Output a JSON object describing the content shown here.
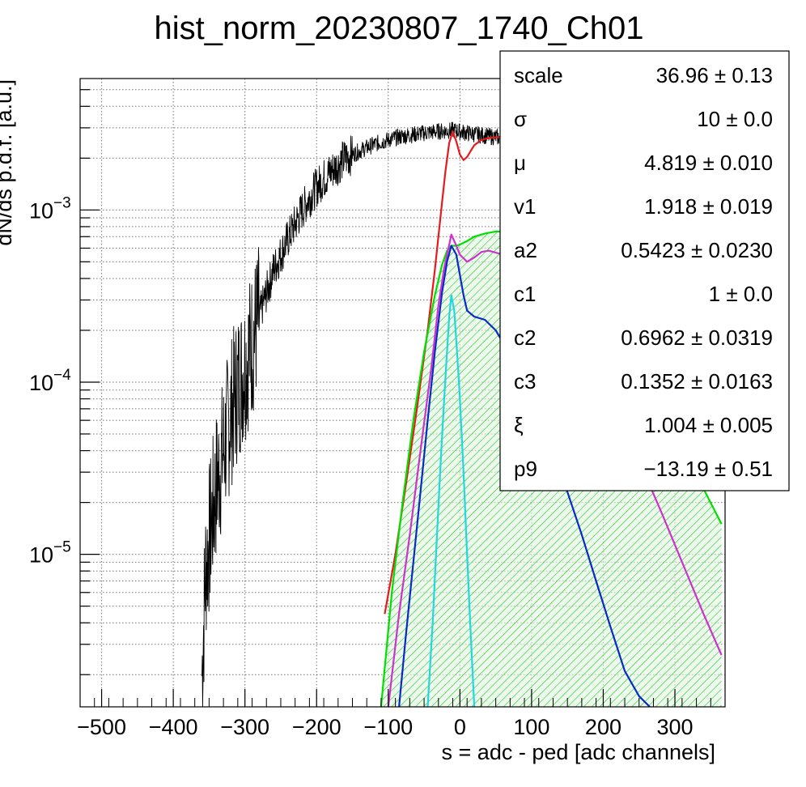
{
  "chart_data": {
    "type": "line",
    "title": "hist_norm_20230807_1740_Ch01",
    "xlabel": "s = adc - ped [adc channels]",
    "ylabel": "dN/ds p.d.f. [a.u.]",
    "xlim": [
      -530,
      370
    ],
    "ylim": [
      1.3e-06,
      0.0058
    ],
    "ylog": true,
    "grid": true,
    "x_ticks": [
      {
        "v": -500,
        "label": "−500"
      },
      {
        "v": -400,
        "label": "−400"
      },
      {
        "v": -300,
        "label": "−300"
      },
      {
        "v": -200,
        "label": "−200"
      },
      {
        "v": -100,
        "label": "−100"
      },
      {
        "v": 0,
        "label": "0"
      },
      {
        "v": 100,
        "label": "100"
      },
      {
        "v": 200,
        "label": "200"
      },
      {
        "v": 300,
        "label": "300"
      }
    ],
    "y_ticks": [
      {
        "v": 0.001,
        "base": "10",
        "exp": "−3"
      },
      {
        "v": 0.0001,
        "base": "10",
        "exp": "−4"
      },
      {
        "v": 1e-05,
        "base": "10",
        "exp": "−5"
      }
    ],
    "series": [
      {
        "key": "data_histogram",
        "color": "#000000",
        "x": [
          -360,
          -355,
          -350,
          -340,
          -330,
          -320,
          -310,
          -300,
          -290,
          -280,
          -270,
          -260,
          -250,
          -240,
          -230,
          -220,
          -210,
          -200,
          -190,
          -180,
          -170,
          -160,
          -150,
          -140,
          -130,
          -120,
          -110,
          -100,
          -90,
          -80,
          -70,
          -60,
          -50,
          -40,
          -30,
          -20,
          -15,
          -10,
          -5,
          0,
          10,
          20,
          30,
          40,
          50,
          60
        ],
        "y": [
          2e-06,
          8e-06,
          1.2e-05,
          2.5e-05,
          4e-05,
          6.5e-05,
          9.5e-05,
          0.000125,
          0.00017,
          0.00024,
          0.00033,
          0.00045,
          0.00055,
          0.00068,
          0.00083,
          0.001,
          0.00118,
          0.00135,
          0.00152,
          0.00168,
          0.00183,
          0.002,
          0.0021,
          0.0022,
          0.0023,
          0.0024,
          0.00248,
          0.00255,
          0.00262,
          0.00268,
          0.00272,
          0.00276,
          0.0028,
          0.00283,
          0.00286,
          0.00288,
          0.00289,
          0.0029,
          0.00288,
          0.00285,
          0.0028,
          0.00276,
          0.00272,
          0.00268,
          0.00265,
          0.00262
        ]
      },
      {
        "key": "total_fit",
        "color": "#e8191b",
        "x": [
          -105,
          -90,
          -75,
          -60,
          -45,
          -35,
          -25,
          -20,
          -15,
          -10,
          -5,
          0,
          5,
          10,
          15,
          20,
          30,
          40,
          55,
          70,
          90,
          110,
          130,
          150,
          170,
          200,
          230,
          260,
          290,
          320,
          345,
          365
        ],
        "y": [
          4.5e-06,
          1e-05,
          2.6e-05,
          7e-05,
          0.0002,
          0.00045,
          0.0011,
          0.0017,
          0.00245,
          0.00285,
          0.0025,
          0.0021,
          0.00195,
          0.00203,
          0.0022,
          0.00238,
          0.00255,
          0.00262,
          0.00265,
          0.00265,
          0.0026,
          0.00248,
          0.00232,
          0.0021,
          0.00185,
          0.00145,
          0.0011,
          0.0008,
          0.00055,
          0.00036,
          0.00025,
          0.00019
        ]
      },
      {
        "key": "component_green",
        "color": "#00e000",
        "fill": true,
        "x": [
          -110,
          -95,
          -80,
          -65,
          -50,
          -35,
          -25,
          -18,
          -12,
          -5,
          0,
          10,
          20,
          35,
          50,
          60,
          80,
          100,
          130,
          160,
          190,
          220,
          250,
          280,
          310,
          340,
          365
        ],
        "y": [
          1.3e-06,
          6e-06,
          2e-05,
          6e-05,
          0.00015,
          0.00032,
          0.00048,
          0.00058,
          0.00062,
          0.00062,
          0.00063,
          0.00066,
          0.0007,
          0.00073,
          0.00075,
          0.00075,
          0.00072,
          0.00066,
          0.00055,
          0.00042,
          0.0003,
          0.0002,
          0.000125,
          7.5e-05,
          4.3e-05,
          2.4e-05,
          1.5e-05
        ]
      },
      {
        "key": "component_magenta",
        "color": "#d030d0",
        "x": [
          -100,
          -85,
          -70,
          -55,
          -40,
          -30,
          -22,
          -16,
          -12,
          -5,
          0,
          10,
          20,
          30,
          40,
          60,
          80,
          100,
          130,
          160,
          190,
          220,
          250,
          280,
          310,
          340,
          365
        ],
        "y": [
          1.3e-06,
          4.5e-06,
          1.3e-05,
          4e-05,
          0.00012,
          0.00028,
          0.00046,
          0.0006,
          0.00072,
          0.00062,
          0.00055,
          0.0005,
          0.00053,
          0.00057,
          0.00058,
          0.00055,
          0.00049,
          0.00041,
          0.00029,
          0.00019,
          0.000115,
          6.5e-05,
          3.5e-05,
          1.8e-05,
          9e-06,
          4.5e-06,
          2.6e-06
        ]
      },
      {
        "key": "component_blue",
        "color": "#0a2ac8",
        "x": [
          -85,
          -75,
          -65,
          -55,
          -45,
          -35,
          -25,
          -18,
          -12,
          -5,
          0,
          5,
          10,
          20,
          35,
          50,
          70,
          90,
          110,
          130,
          150,
          170,
          190,
          210,
          230,
          250,
          265
        ],
        "y": [
          1.3e-06,
          3.5e-06,
          9e-06,
          2.3e-05,
          6e-05,
          0.00015,
          0.00033,
          0.0005,
          0.00062,
          0.00055,
          0.00042,
          0.00032,
          0.00026,
          0.00024,
          0.00023,
          0.0002,
          0.000145,
          0.0001,
          6.3e-05,
          3.9e-05,
          2.3e-05,
          1.3e-05,
          7e-06,
          3.8e-06,
          2.1e-06,
          1.5e-06,
          1.3e-06
        ]
      },
      {
        "key": "component_cyan",
        "color": "#20d8e0",
        "x": [
          -45,
          -38,
          -32,
          -26,
          -22,
          -18,
          -15,
          -12,
          -8,
          -4,
          0,
          5,
          10,
          15,
          20
        ],
        "y": [
          1.3e-06,
          4e-06,
          1.3e-05,
          4e-05,
          8e-05,
          0.00015,
          0.00024,
          0.00032,
          0.00026,
          0.00015,
          8e-05,
          3e-05,
          1e-05,
          3.5e-06,
          1.3e-06
        ]
      }
    ],
    "stats": [
      {
        "name": "scale",
        "value": "36.96",
        "err": "± 0.13"
      },
      {
        "name": "σ",
        "value": "10",
        "err": "± 0.0"
      },
      {
        "name": "μ",
        "value": "4.819",
        "err": "± 0.010"
      },
      {
        "name": "v1",
        "value": "1.918",
        "err": "± 0.019"
      },
      {
        "name": "a2",
        "value": "0.5423",
        "err": "± 0.0230"
      },
      {
        "name": "c1",
        "value": "1",
        "err": "± 0.0"
      },
      {
        "name": "c2",
        "value": "0.6962",
        "err": "± 0.0319"
      },
      {
        "name": "c3",
        "value": "0.1352",
        "err": "± 0.0163"
      },
      {
        "name": "ξ",
        "value": "1.004",
        "err": "± 0.005"
      },
      {
        "name": "p9",
        "value": "−13.19",
        "err": "± 0.51"
      }
    ],
    "legend_position": "top-right"
  }
}
